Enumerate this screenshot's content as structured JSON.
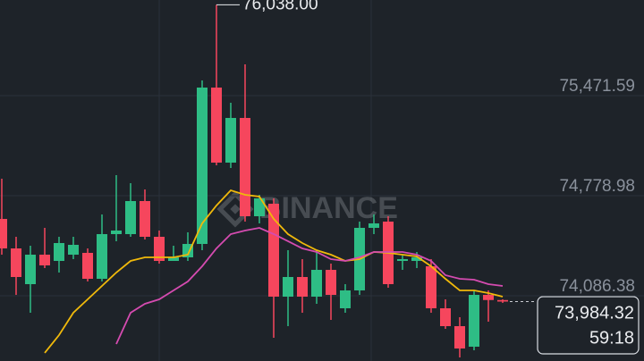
{
  "chart_data": {
    "type": "candlestick",
    "watermark": "BINANCE",
    "up_color": "#2ebd85",
    "down_color": "#f6465d",
    "grid": true,
    "ylim": [
      73573.1,
      76071.4
    ],
    "yticks": [
      {
        "value": 75471.59,
        "label": "75,471.59"
      },
      {
        "value": 74778.98,
        "label": "74,778.98"
      },
      {
        "value": 74086.38,
        "label": "74,086.38"
      }
    ],
    "open": [
      74556.4,
      74352.3,
      74104.9,
      74309.0,
      74265.7,
      74309.0,
      74321.4,
      74142.0,
      74451.2,
      74451.2,
      74680.0,
      74432.7,
      74265.7,
      74290.5,
      74383.2,
      75465.4,
      74946.0,
      75255.2,
      74574.9,
      74661.5,
      74018.4,
      74154.4,
      74018.4,
      74203.9,
      73938.0,
      74061.6,
      74494.5,
      74537.8,
      74265.7,
      74265.7,
      74228.6,
      73938.0,
      73814.3,
      73672.1,
      74030.7,
      73995.0
    ],
    "high": [
      74834.6,
      74432.7,
      74370.8,
      74494.5,
      74432.7,
      74432.7,
      74352.3,
      74587.3,
      74859.4,
      74803.7,
      74760.4,
      74476.0,
      74370.8,
      74463.6,
      75514.9,
      76038.0,
      75360.3,
      75626.2,
      74723.3,
      74698.6,
      74339.9,
      74278.1,
      74339.9,
      74247.2,
      74104.9,
      74537.8,
      74587.3,
      74574.9,
      74302.8,
      74327.6,
      74278.1,
      73999.8,
      73876.1,
      74061.6,
      74061.6,
      74000.0
    ],
    "low": [
      74309.0,
      74030.7,
      73907.0,
      74216.2,
      74185.3,
      74278.1,
      74123.5,
      74123.5,
      74401.8,
      74432.7,
      74414.1,
      74247.2,
      74265.7,
      74265.7,
      74339.9,
      74927.4,
      74908.9,
      74537.8,
      74525.4,
      73733.9,
      73814.3,
      73907.0,
      73968.9,
      73857.6,
      73907.0,
      74030.7,
      74451.2,
      74080.2,
      74203.9,
      74216.2,
      73907.0,
      73795.7,
      73597.8,
      73647.3,
      73845.2,
      73975.0
    ],
    "close": [
      74352.3,
      74154.4,
      74309.0,
      74234.8,
      74389.4,
      74377.0,
      74142.0,
      74451.2,
      74476.0,
      74680.0,
      74432.7,
      74265.7,
      74290.5,
      74383.2,
      75465.4,
      74946.0,
      75255.2,
      74574.9,
      74698.6,
      74018.4,
      74154.4,
      74018.4,
      74203.9,
      74030.7,
      74061.6,
      74494.5,
      74525.4,
      74104.9,
      74278.1,
      74290.5,
      73938.0,
      73814.3,
      73659.7,
      74030.7,
      73995.0,
      73984.32
    ],
    "series": [
      {
        "color": "#f0b90b",
        "values": [
          null,
          null,
          null,
          73628.8,
          73752.4,
          73907.0,
          73999.8,
          74092.6,
          74185.3,
          74265.7,
          74290.5,
          74290.5,
          74290.5,
          74309.0,
          74525.4,
          74649.1,
          74754.3,
          74723.3,
          74711.0,
          74556.4,
          74451.2,
          74389.4,
          74339.9,
          74309.0,
          74265.7,
          74278.1,
          74327.6,
          74321.4,
          74309.0,
          74296.6,
          74228.6,
          74142.0,
          74061.6,
          74061.6,
          74043.1,
          74018.4
        ]
      },
      {
        "color": "#d54bb0",
        "values": [
          null,
          null,
          null,
          null,
          null,
          null,
          null,
          null,
          73690.6,
          73907.0,
          73968.9,
          73999.8,
          74061.6,
          74123.5,
          74228.6,
          74352.3,
          74451.2,
          74476.0,
          74494.5,
          74451.2,
          74401.8,
          74352.3,
          74327.6,
          74278.1,
          74265.7,
          74290.5,
          74327.6,
          74327.6,
          74327.6,
          74309.0,
          74265.7,
          74166.8,
          74142.0,
          74135.9,
          74104.9,
          74092.6
        ]
      }
    ],
    "high_label": {
      "value": 76038.0,
      "label": "76,038.00"
    },
    "last_price": {
      "value": 73984.32,
      "label": "73,984.32"
    },
    "countdown": "59:18"
  }
}
